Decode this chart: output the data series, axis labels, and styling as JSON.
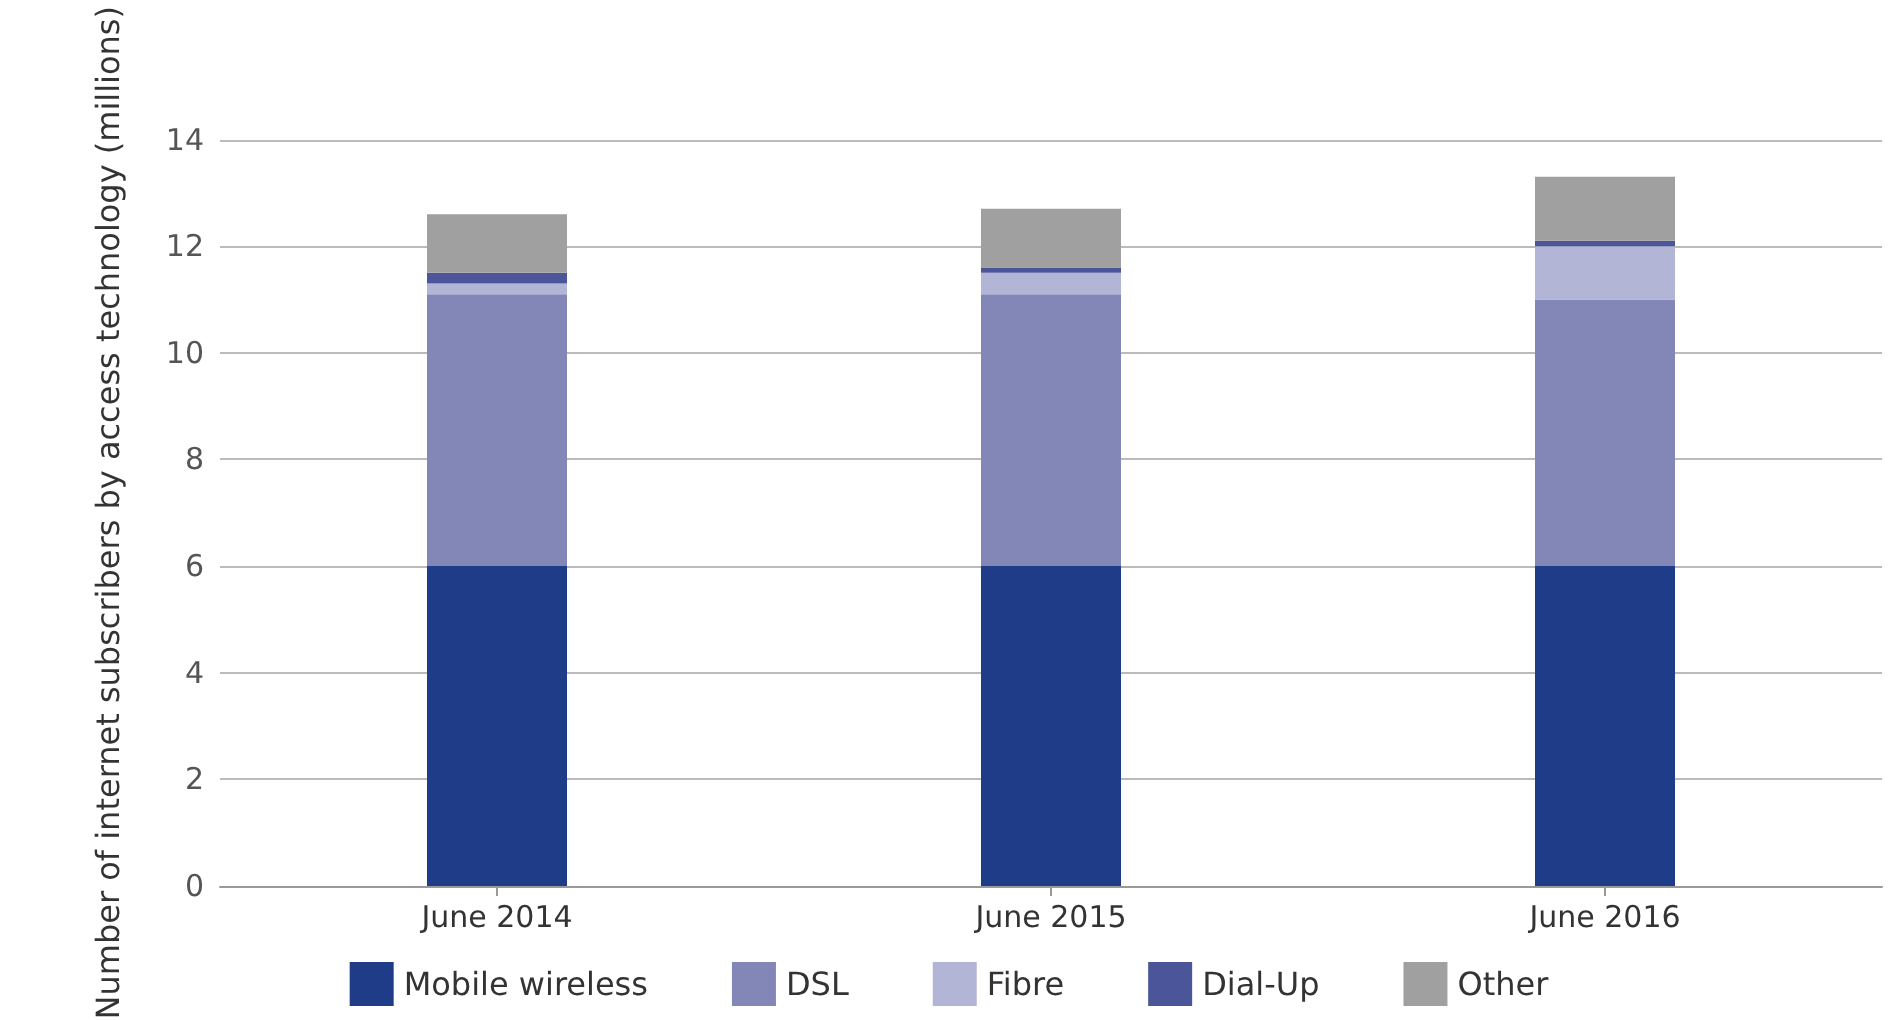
{
  "chart_data": {
    "type": "bar",
    "stacked": true,
    "ylabel": "Number of internet subscribers by access technology (millions)",
    "categories": [
      "June 2014",
      "June 2015",
      "June 2016"
    ],
    "series": [
      {
        "name": "Mobile wireless",
        "color": "#1f3c88",
        "values": [
          6,
          6,
          6
        ]
      },
      {
        "name": "DSL",
        "color": "#8387b8",
        "values": [
          5.1,
          5.1,
          5.0
        ]
      },
      {
        "name": "Fibre",
        "color": "#b3b5d6",
        "values": [
          0.2,
          0.4,
          1.0
        ]
      },
      {
        "name": "Dial-Up",
        "color": "#4a559a",
        "values": [
          0.2,
          0.1,
          0.1
        ]
      },
      {
        "name": "Other",
        "color": "#a0a0a0",
        "values": [
          1.1,
          1.1,
          1.2
        ]
      }
    ],
    "ylim": [
      0,
      14
    ],
    "yticks": [
      0,
      2,
      4,
      6,
      8,
      10,
      12,
      14
    ],
    "grid": "y",
    "legend": "bottom"
  }
}
